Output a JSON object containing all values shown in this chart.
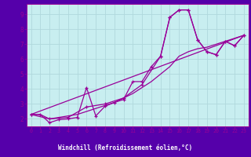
{
  "xlabel": "Windchill (Refroidissement éolien,°C)",
  "bg_plot": "#c8eef0",
  "bg_fig": "#5500aa",
  "grid_color": "#b0d8dc",
  "line_color": "#990099",
  "xlim": [
    -0.5,
    23.5
  ],
  "ylim": [
    1.5,
    9.7
  ],
  "xticks": [
    0,
    1,
    2,
    3,
    4,
    5,
    6,
    7,
    8,
    9,
    10,
    11,
    12,
    13,
    14,
    15,
    16,
    17,
    18,
    19,
    20,
    21,
    22,
    23
  ],
  "yticks": [
    2,
    3,
    4,
    5,
    6,
    7,
    8,
    9
  ],
  "curve1_x": [
    0,
    1,
    2,
    3,
    4,
    5,
    6,
    7,
    8,
    9,
    10,
    11,
    12,
    13,
    14,
    15,
    16,
    17,
    18,
    19,
    20,
    21,
    22,
    23
  ],
  "curve1_y": [
    2.3,
    2.3,
    1.75,
    1.95,
    2.0,
    2.1,
    4.1,
    2.2,
    2.85,
    3.1,
    3.3,
    4.5,
    4.5,
    5.5,
    6.2,
    8.8,
    9.3,
    9.3,
    7.3,
    6.5,
    6.3,
    7.2,
    6.9,
    7.6
  ],
  "curve2_x": [
    0,
    1,
    2,
    3,
    4,
    5,
    6,
    7,
    8,
    9,
    10,
    11,
    12,
    13,
    14,
    15,
    16,
    17,
    18,
    19,
    20,
    21,
    22,
    23
  ],
  "curve2_y": [
    2.3,
    2.3,
    2.0,
    2.1,
    2.2,
    2.3,
    2.5,
    2.7,
    2.9,
    3.1,
    3.4,
    3.7,
    4.1,
    4.5,
    5.0,
    5.5,
    6.2,
    6.5,
    6.7,
    6.8,
    7.0,
    7.2,
    7.4,
    7.6
  ],
  "trend_x": [
    0,
    23
  ],
  "trend_y": [
    2.3,
    7.6
  ],
  "curve3_x": [
    0,
    2,
    4,
    6,
    8,
    10,
    12,
    14,
    15,
    16,
    17,
    18,
    19,
    20,
    21,
    22,
    23
  ],
  "curve3_y": [
    2.3,
    2.0,
    2.1,
    2.8,
    3.0,
    3.4,
    4.3,
    6.2,
    8.8,
    9.3,
    9.3,
    7.3,
    6.5,
    6.3,
    7.2,
    6.9,
    7.6
  ]
}
